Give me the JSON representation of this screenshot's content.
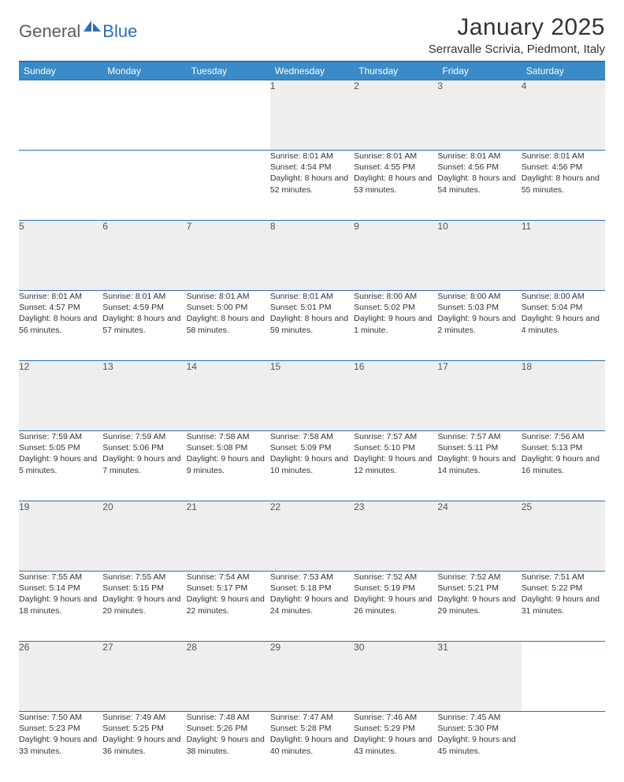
{
  "logo": {
    "text1": "General",
    "text2": "Blue"
  },
  "title": "January 2025",
  "location": "Serravalle Scrivia, Piedmont, Italy",
  "colors": {
    "header_bg": "#3b8bc8",
    "header_border": "#2f6fb0",
    "daynum_bg": "#eeeeee",
    "text": "#333333",
    "logo_gray": "#5a5a5a",
    "logo_blue": "#2f6fb0"
  },
  "weekdays": [
    "Sunday",
    "Monday",
    "Tuesday",
    "Wednesday",
    "Thursday",
    "Friday",
    "Saturday"
  ],
  "weeks": [
    [
      null,
      null,
      null,
      {
        "d": "1",
        "sr": "8:01 AM",
        "ss": "4:54 PM",
        "dl": "8 hours and 52 minutes."
      },
      {
        "d": "2",
        "sr": "8:01 AM",
        "ss": "4:55 PM",
        "dl": "8 hours and 53 minutes."
      },
      {
        "d": "3",
        "sr": "8:01 AM",
        "ss": "4:56 PM",
        "dl": "8 hours and 54 minutes."
      },
      {
        "d": "4",
        "sr": "8:01 AM",
        "ss": "4:56 PM",
        "dl": "8 hours and 55 minutes."
      }
    ],
    [
      {
        "d": "5",
        "sr": "8:01 AM",
        "ss": "4:57 PM",
        "dl": "8 hours and 56 minutes."
      },
      {
        "d": "6",
        "sr": "8:01 AM",
        "ss": "4:59 PM",
        "dl": "8 hours and 57 minutes."
      },
      {
        "d": "7",
        "sr": "8:01 AM",
        "ss": "5:00 PM",
        "dl": "8 hours and 58 minutes."
      },
      {
        "d": "8",
        "sr": "8:01 AM",
        "ss": "5:01 PM",
        "dl": "8 hours and 59 minutes."
      },
      {
        "d": "9",
        "sr": "8:00 AM",
        "ss": "5:02 PM",
        "dl": "9 hours and 1 minute."
      },
      {
        "d": "10",
        "sr": "8:00 AM",
        "ss": "5:03 PM",
        "dl": "9 hours and 2 minutes."
      },
      {
        "d": "11",
        "sr": "8:00 AM",
        "ss": "5:04 PM",
        "dl": "9 hours and 4 minutes."
      }
    ],
    [
      {
        "d": "12",
        "sr": "7:59 AM",
        "ss": "5:05 PM",
        "dl": "9 hours and 5 minutes."
      },
      {
        "d": "13",
        "sr": "7:59 AM",
        "ss": "5:06 PM",
        "dl": "9 hours and 7 minutes."
      },
      {
        "d": "14",
        "sr": "7:58 AM",
        "ss": "5:08 PM",
        "dl": "9 hours and 9 minutes."
      },
      {
        "d": "15",
        "sr": "7:58 AM",
        "ss": "5:09 PM",
        "dl": "9 hours and 10 minutes."
      },
      {
        "d": "16",
        "sr": "7:57 AM",
        "ss": "5:10 PM",
        "dl": "9 hours and 12 minutes."
      },
      {
        "d": "17",
        "sr": "7:57 AM",
        "ss": "5:11 PM",
        "dl": "9 hours and 14 minutes."
      },
      {
        "d": "18",
        "sr": "7:56 AM",
        "ss": "5:13 PM",
        "dl": "9 hours and 16 minutes."
      }
    ],
    [
      {
        "d": "19",
        "sr": "7:55 AM",
        "ss": "5:14 PM",
        "dl": "9 hours and 18 minutes."
      },
      {
        "d": "20",
        "sr": "7:55 AM",
        "ss": "5:15 PM",
        "dl": "9 hours and 20 minutes."
      },
      {
        "d": "21",
        "sr": "7:54 AM",
        "ss": "5:17 PM",
        "dl": "9 hours and 22 minutes."
      },
      {
        "d": "22",
        "sr": "7:53 AM",
        "ss": "5:18 PM",
        "dl": "9 hours and 24 minutes."
      },
      {
        "d": "23",
        "sr": "7:52 AM",
        "ss": "5:19 PM",
        "dl": "9 hours and 26 minutes."
      },
      {
        "d": "24",
        "sr": "7:52 AM",
        "ss": "5:21 PM",
        "dl": "9 hours and 29 minutes."
      },
      {
        "d": "25",
        "sr": "7:51 AM",
        "ss": "5:22 PM",
        "dl": "9 hours and 31 minutes."
      }
    ],
    [
      {
        "d": "26",
        "sr": "7:50 AM",
        "ss": "5:23 PM",
        "dl": "9 hours and 33 minutes."
      },
      {
        "d": "27",
        "sr": "7:49 AM",
        "ss": "5:25 PM",
        "dl": "9 hours and 36 minutes."
      },
      {
        "d": "28",
        "sr": "7:48 AM",
        "ss": "5:26 PM",
        "dl": "9 hours and 38 minutes."
      },
      {
        "d": "29",
        "sr": "7:47 AM",
        "ss": "5:28 PM",
        "dl": "9 hours and 40 minutes."
      },
      {
        "d": "30",
        "sr": "7:46 AM",
        "ss": "5:29 PM",
        "dl": "9 hours and 43 minutes."
      },
      {
        "d": "31",
        "sr": "7:45 AM",
        "ss": "5:30 PM",
        "dl": "9 hours and 45 minutes."
      },
      null
    ]
  ],
  "labels": {
    "sunrise": "Sunrise:",
    "sunset": "Sunset:",
    "daylight": "Daylight:"
  }
}
